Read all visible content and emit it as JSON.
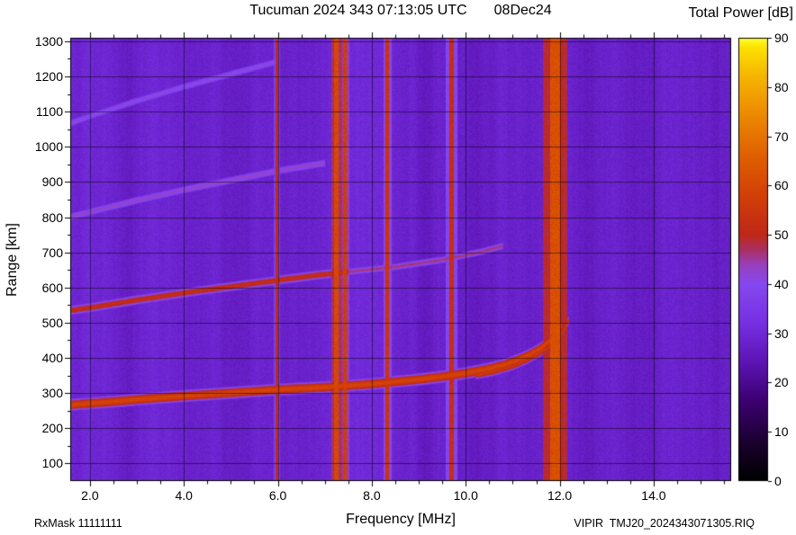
{
  "header": {
    "title_station": "Tucuman 2024 343 07:13:05 UTC",
    "title_date": "08Dec24",
    "colorbar_title": "Total Power [dB]"
  },
  "footer": {
    "rx_mask": "RxMask 11111111",
    "file_id": "VIPIR  TMJ20_2024343071305.RIQ"
  },
  "chart_data": {
    "type": "heatmap",
    "title": "Tucuman 2024 343 07:13:05 UTC    08Dec24",
    "xlabel": "Frequency [MHz]",
    "ylabel": "Range [km]",
    "xlim": [
      1.58,
      15.65
    ],
    "ylim": [
      50,
      1310
    ],
    "x_ticks": [
      2,
      4,
      6,
      8,
      10,
      12,
      14
    ],
    "x_tick_labels": [
      "2.0",
      "4.0",
      "6.0",
      "8.0",
      "10.0",
      "12.0",
      "14.0"
    ],
    "x_minor_step": 0.5,
    "y_ticks": [
      100,
      200,
      300,
      400,
      500,
      600,
      700,
      800,
      900,
      1000,
      1100,
      1200,
      1300
    ],
    "y_minor_step": 50,
    "grid": true,
    "colorbar": {
      "label": "Total Power [dB]",
      "min": 0,
      "max": 90,
      "ticks": [
        0,
        10,
        20,
        30,
        40,
        50,
        60,
        70,
        80,
        90
      ]
    },
    "colormap": [
      [
        0,
        "#000000"
      ],
      [
        8,
        "#1c0030"
      ],
      [
        16,
        "#3c0070"
      ],
      [
        24,
        "#5c14b4"
      ],
      [
        32,
        "#7730e2"
      ],
      [
        40,
        "#8648f0"
      ],
      [
        44,
        "#9a40bb"
      ],
      [
        47,
        "#aa3060"
      ],
      [
        50,
        "#c02818"
      ],
      [
        58,
        "#d24008"
      ],
      [
        66,
        "#e06000"
      ],
      [
        74,
        "#ec8800"
      ],
      [
        82,
        "#f6b400"
      ],
      [
        88,
        "#fde200"
      ],
      [
        90,
        "#ffff30"
      ]
    ],
    "background_power_db": 28.5,
    "rfi_lines": [
      {
        "freq_mhz": 5.98,
        "width_mhz": 0.06,
        "power_db": 50
      },
      {
        "freq_mhz": 7.25,
        "width_mhz": 0.1,
        "power_db": 60
      },
      {
        "freq_mhz": 7.43,
        "width_mhz": 0.07,
        "power_db": 57
      },
      {
        "freq_mhz": 8.33,
        "width_mhz": 0.07,
        "power_db": 54
      },
      {
        "freq_mhz": 9.7,
        "width_mhz": 0.11,
        "power_db": 52
      },
      {
        "freq_mhz": 11.9,
        "width_mhz": 0.22,
        "power_db": 62
      },
      {
        "freq_mhz": 12.03,
        "width_mhz": 0.05,
        "power_db": 50
      }
    ],
    "shade_bands": [
      {
        "freq_mhz": 2.75,
        "width_mhz": 0.5,
        "delta_db": -1.8
      },
      {
        "freq_mhz": 5.0,
        "width_mhz": 0.6,
        "delta_db": -1.5
      },
      {
        "freq_mhz": 6.65,
        "width_mhz": 0.3,
        "delta_db": -1.2
      },
      {
        "freq_mhz": 9.15,
        "width_mhz": 0.35,
        "delta_db": -1.6
      },
      {
        "freq_mhz": 10.3,
        "width_mhz": 0.5,
        "delta_db": -2.0
      },
      {
        "freq_mhz": 12.6,
        "width_mhz": 0.4,
        "delta_db": -1.6
      },
      {
        "freq_mhz": 13.8,
        "width_mhz": 0.5,
        "delta_db": -1.2
      },
      {
        "freq_mhz": 3.35,
        "width_mhz": 0.3,
        "delta_db": 1.2
      },
      {
        "freq_mhz": 8.05,
        "width_mhz": 0.35,
        "delta_db": 1.0
      },
      {
        "freq_mhz": 14.6,
        "width_mhz": 0.4,
        "delta_db": 1.0
      }
    ],
    "echo_traces": [
      {
        "name": "f-region-o-mode-1st-hop",
        "power_db": 59,
        "width_km": 16,
        "points": [
          [
            1.58,
            268
          ],
          [
            2,
            272
          ],
          [
            2.5,
            277
          ],
          [
            3,
            283
          ],
          [
            4,
            293
          ],
          [
            5,
            302
          ],
          [
            6,
            311
          ],
          [
            7,
            318
          ],
          [
            8,
            327
          ],
          [
            9,
            340
          ],
          [
            9.5,
            348
          ],
          [
            10,
            358
          ],
          [
            10.4,
            368
          ],
          [
            10.8,
            381
          ],
          [
            11.1,
            395
          ],
          [
            11.4,
            413
          ],
          [
            11.6,
            429
          ],
          [
            11.8,
            451
          ],
          [
            11.95,
            477
          ],
          [
            12.05,
            497
          ]
        ]
      },
      {
        "name": "f-region-x-mode-1st-hop",
        "power_db": 55,
        "width_km": 12,
        "points": [
          [
            10.2,
            352
          ],
          [
            10.6,
            362
          ],
          [
            11.0,
            378
          ],
          [
            11.3,
            395
          ],
          [
            11.55,
            413
          ],
          [
            11.75,
            431
          ],
          [
            11.95,
            455
          ],
          [
            12.1,
            482
          ],
          [
            12.2,
            510
          ]
        ]
      },
      {
        "name": "2nd-hop",
        "power_db": 52,
        "width_km": 14,
        "points": [
          [
            1.58,
            536
          ],
          [
            2,
            544
          ],
          [
            3,
            566
          ],
          [
            4,
            586
          ],
          [
            5,
            604
          ],
          [
            6,
            622
          ],
          [
            6.8,
            636
          ],
          [
            7.5,
            646
          ]
        ]
      },
      {
        "name": "2nd-hop-faint-extension",
        "power_db": 46,
        "width_km": 12,
        "points": [
          [
            7.5,
            646
          ],
          [
            8.5,
            660
          ],
          [
            9.5,
            680
          ],
          [
            10.3,
            702
          ],
          [
            10.8,
            720
          ]
        ]
      },
      {
        "name": "3rd-hop-faint",
        "power_db": 43,
        "width_km": 14,
        "points": [
          [
            1.58,
            802
          ],
          [
            2,
            816
          ],
          [
            3,
            849
          ],
          [
            4,
            879
          ],
          [
            5,
            906
          ],
          [
            6,
            933
          ],
          [
            7,
            955
          ]
        ]
      },
      {
        "name": "4th-hop-very-faint",
        "power_db": 41,
        "width_km": 14,
        "points": [
          [
            1.58,
            1068
          ],
          [
            2,
            1088
          ],
          [
            3,
            1132
          ],
          [
            4,
            1172
          ],
          [
            5,
            1208
          ],
          [
            6,
            1244
          ]
        ]
      }
    ]
  }
}
